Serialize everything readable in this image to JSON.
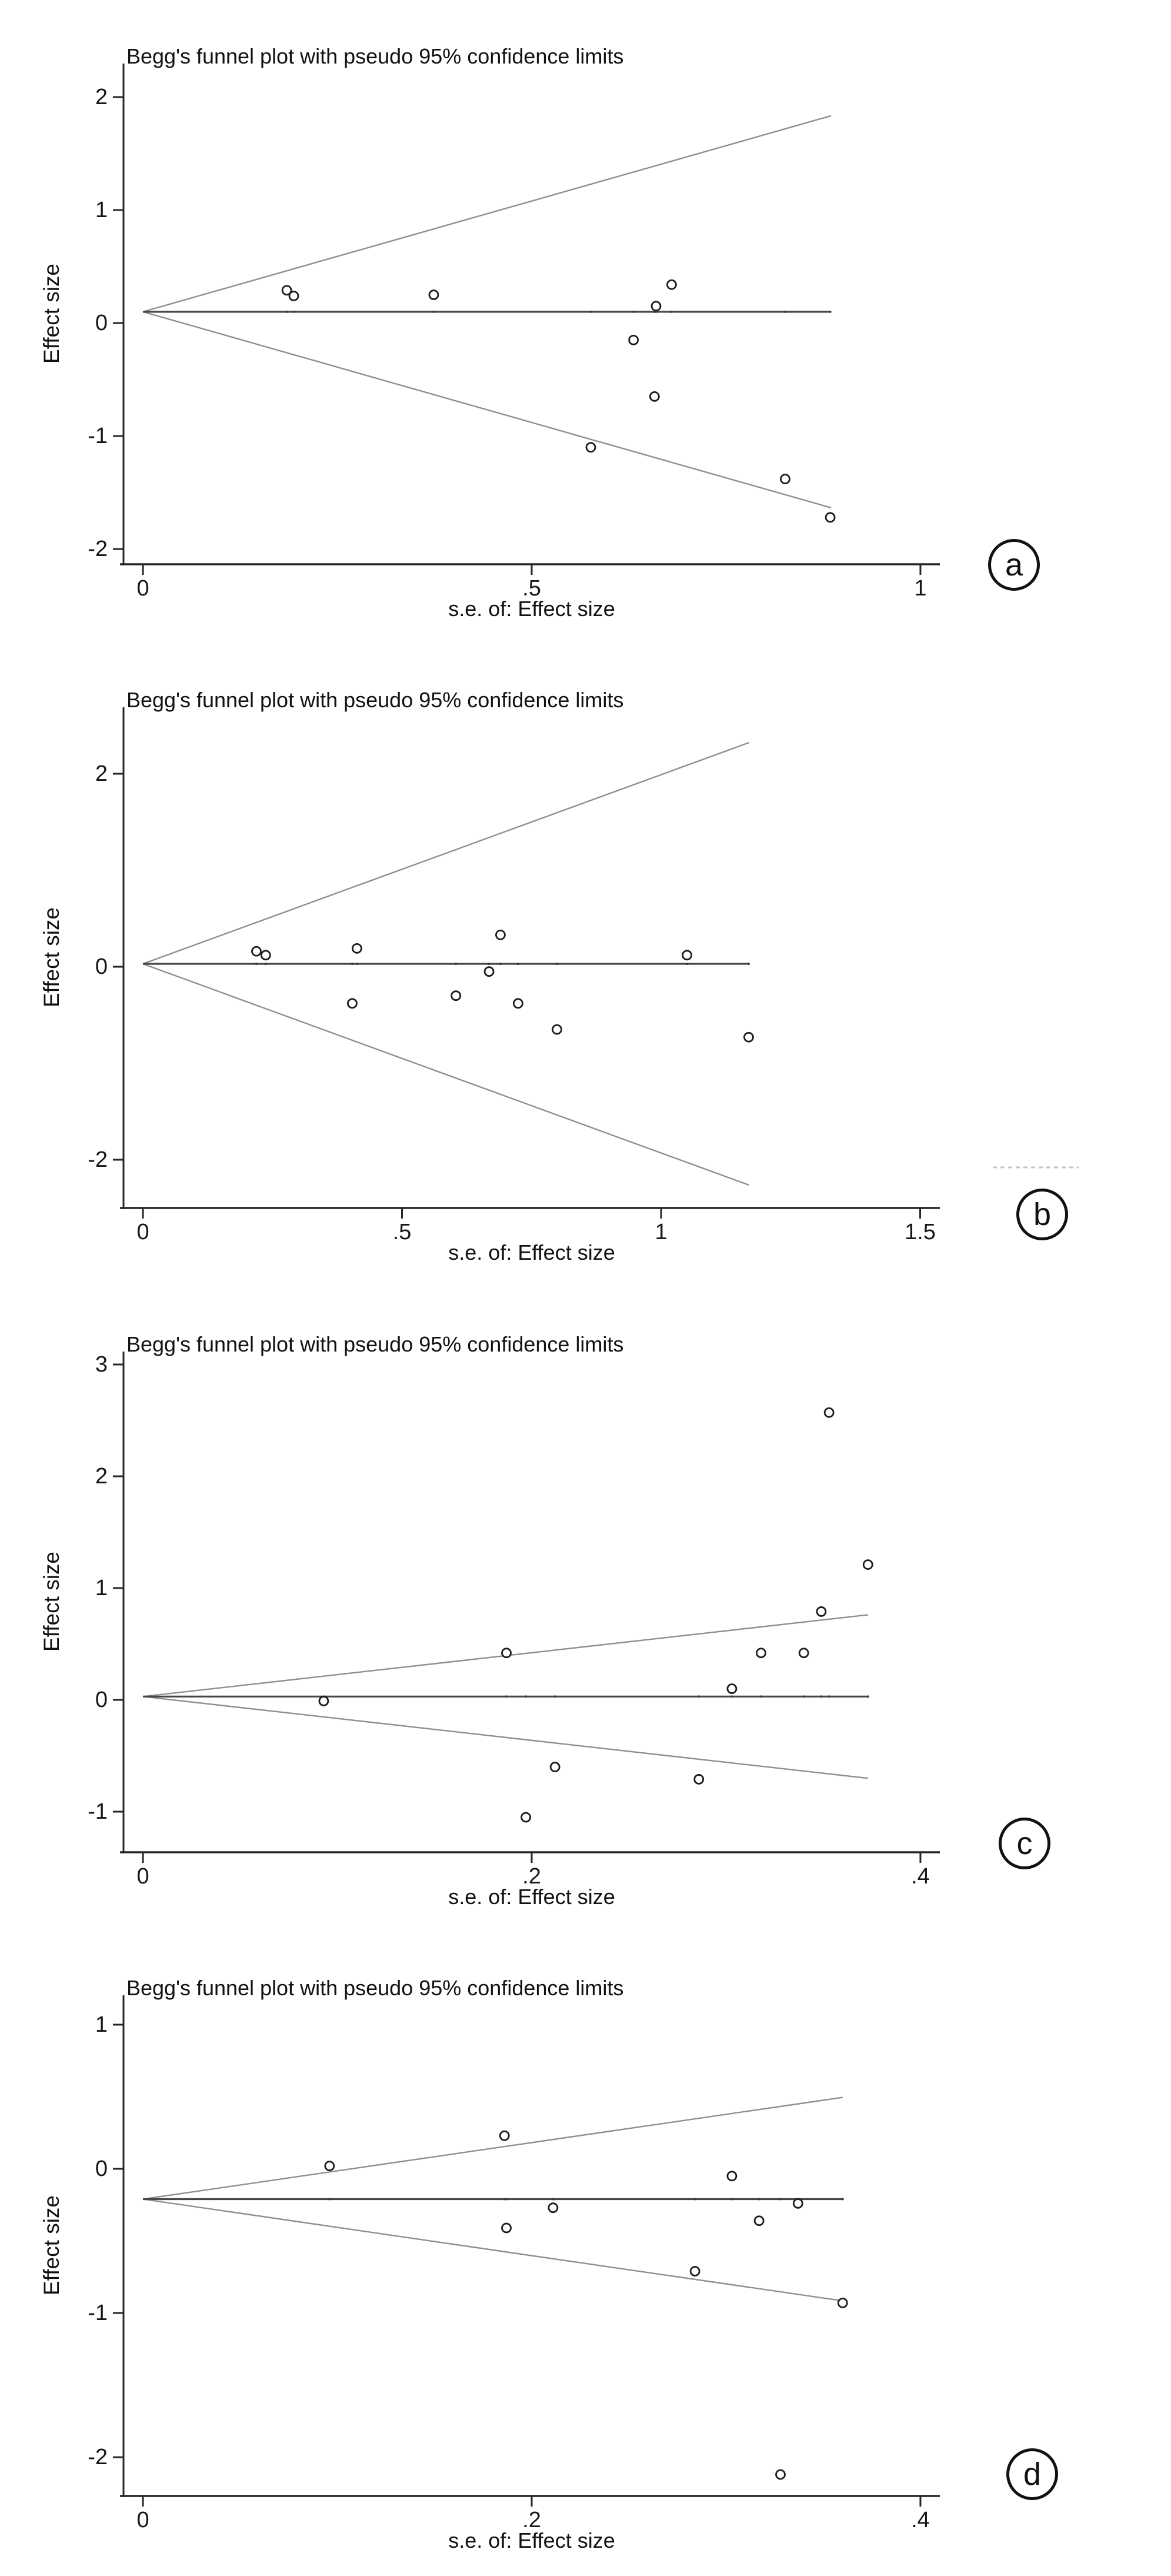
{
  "styles": {
    "background": "#ffffff",
    "axis_color": "#262626",
    "funnel_line_color": "#8f8f8f",
    "pooled_line_color": "#464646",
    "marker_color": "#1c1c1c",
    "marker_fill": "#ffffff",
    "text_color": "#161616",
    "artifact_color": "#c4c4c4"
  },
  "chart_data": [
    {
      "panel_label": "a",
      "type": "scatter",
      "title": "Begg's funnel plot with pseudo 95% confidence limits",
      "xlabel": "s.e. of: Effect size",
      "ylabel": "Effect size",
      "x_ticks": [
        0,
        0.5,
        1
      ],
      "x_tick_labels": [
        "0",
        ".5",
        "1"
      ],
      "y_ticks": [
        2,
        1,
        0,
        -1,
        -2
      ],
      "y_tick_labels": [
        "2",
        "1",
        "0",
        "-1",
        "-2"
      ],
      "xlim": [
        -0.025,
        1.025
      ],
      "ylim": [
        -2.135,
        2.297
      ],
      "grid": false,
      "legend": false,
      "pooled_effect": 0.1,
      "se_max": 0.885,
      "ci_multiplier": 1.96,
      "points": [
        [
          0.185,
          0.29
        ],
        [
          0.194,
          0.24
        ],
        [
          0.374,
          0.25
        ],
        [
          0.68,
          0.34
        ],
        [
          0.66,
          0.15
        ],
        [
          0.631,
          -0.15
        ],
        [
          0.658,
          -0.65
        ],
        [
          0.576,
          -1.1
        ],
        [
          0.826,
          -1.38
        ],
        [
          0.884,
          -1.72
        ]
      ]
    },
    {
      "panel_label": "b",
      "type": "scatter",
      "title": "Begg's funnel plot with pseudo 95% confidence limits",
      "xlabel": "s.e. of: Effect size",
      "ylabel": "Effect size",
      "x_ticks": [
        0,
        0.5,
        1,
        1.5
      ],
      "x_tick_labels": [
        "0",
        ".5",
        "1",
        "1.5"
      ],
      "y_ticks": [
        2,
        0,
        -2
      ],
      "y_tick_labels": [
        "2",
        "0",
        "-2"
      ],
      "xlim": [
        -0.0375,
        1.538
      ],
      "ylim": [
        -2.5,
        2.689
      ],
      "grid": false,
      "legend": false,
      "pooled_effect": 0.03,
      "se_max": 1.17,
      "ci_multiplier": 1.96,
      "points": [
        [
          0.219,
          0.16
        ],
        [
          0.237,
          0.12
        ],
        [
          0.413,
          0.19
        ],
        [
          0.404,
          -0.38
        ],
        [
          0.604,
          -0.3
        ],
        [
          0.668,
          -0.05
        ],
        [
          0.69,
          0.33
        ],
        [
          0.724,
          -0.38
        ],
        [
          0.799,
          -0.65
        ],
        [
          1.05,
          0.12
        ],
        [
          1.169,
          -0.73
        ]
      ]
    },
    {
      "panel_label": "c",
      "type": "scatter",
      "title": "Begg's funnel plot with pseudo 95% confidence limits",
      "xlabel": "s.e. of: Effect size",
      "ylabel": "Effect size",
      "x_ticks": [
        0,
        0.2,
        0.4
      ],
      "x_tick_labels": [
        "0",
        ".2",
        ".4"
      ],
      "y_ticks": [
        3,
        2,
        1,
        0,
        -1
      ],
      "y_tick_labels": [
        "3",
        "2",
        "1",
        "0",
        "-1"
      ],
      "xlim": [
        -0.01,
        0.41
      ],
      "ylim": [
        -1.363,
        3.116
      ],
      "grid": false,
      "legend": false,
      "pooled_effect": 0.03,
      "se_max": 0.373,
      "ci_multiplier": 1.96,
      "points": [
        [
          0.353,
          2.57
        ],
        [
          0.373,
          1.21
        ],
        [
          0.349,
          0.79
        ],
        [
          0.187,
          0.42
        ],
        [
          0.318,
          0.42
        ],
        [
          0.34,
          0.42
        ],
        [
          0.303,
          0.1
        ],
        [
          0.093,
          -0.01
        ],
        [
          0.212,
          -0.6
        ],
        [
          0.286,
          -0.71
        ],
        [
          0.197,
          -1.05
        ]
      ]
    },
    {
      "panel_label": "d",
      "type": "scatter",
      "title": "Begg's funnel plot with pseudo 95% confidence limits",
      "xlabel": "s.e. of: Effect size",
      "ylabel": "Effect size",
      "x_ticks": [
        0,
        0.2,
        0.4
      ],
      "x_tick_labels": [
        "0",
        ".2",
        ".4"
      ],
      "y_ticks": [
        1,
        0,
        -1,
        -2
      ],
      "y_tick_labels": [
        "1",
        "0",
        "-1",
        "-2"
      ],
      "xlim": [
        -0.01,
        0.41
      ],
      "ylim": [
        -2.269,
        1.204
      ],
      "grid": false,
      "legend": false,
      "pooled_effect": -0.21,
      "se_max": 0.36,
      "ci_multiplier": 1.96,
      "points": [
        [
          0.096,
          0.02
        ],
        [
          0.186,
          0.23
        ],
        [
          0.211,
          -0.27
        ],
        [
          0.187,
          -0.41
        ],
        [
          0.303,
          -0.05
        ],
        [
          0.317,
          -0.36
        ],
        [
          0.337,
          -0.24
        ],
        [
          0.284,
          -0.71
        ],
        [
          0.36,
          -0.93
        ],
        [
          0.328,
          -2.12
        ]
      ]
    }
  ]
}
